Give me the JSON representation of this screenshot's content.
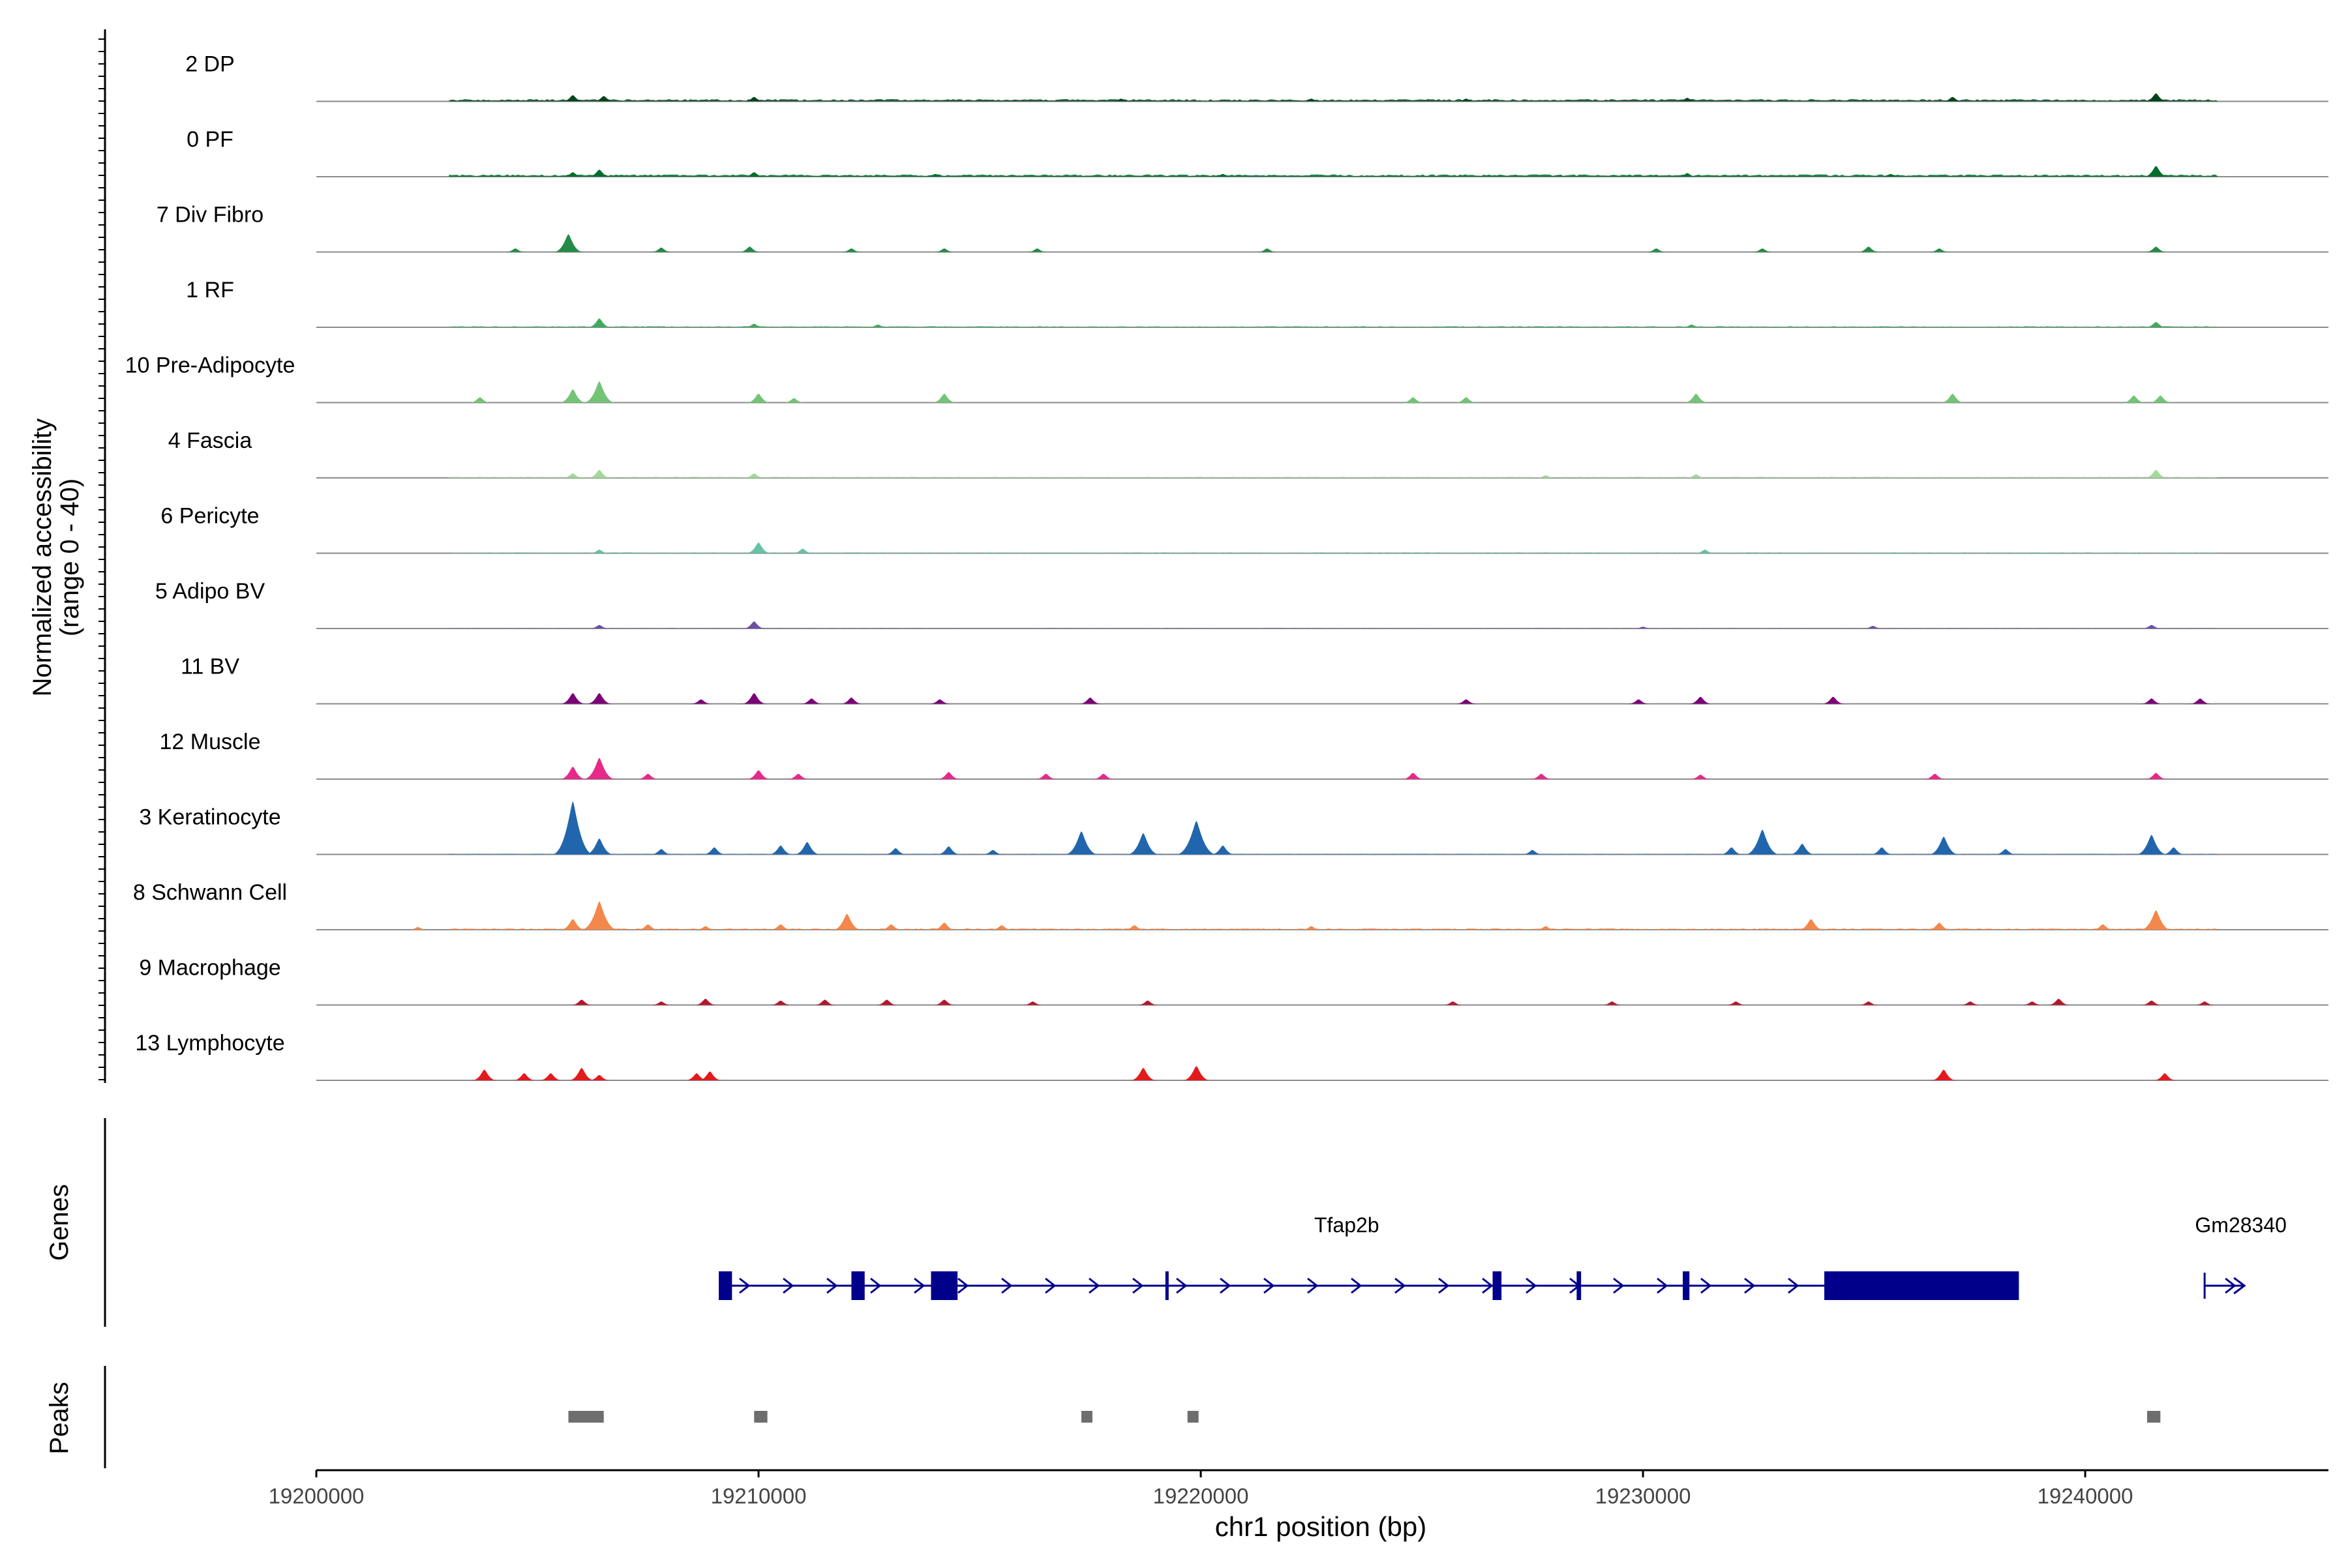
{
  "chart_data": {
    "type": "area",
    "title": "",
    "chromosome": "chr1",
    "xlabel": "chr1 position (bp)",
    "ylabel_line1": "Normalized accessibility",
    "ylabel_line2": "(range 0 - 40)",
    "xlim": [
      19200000,
      19245500
    ],
    "ylim": [
      0,
      40
    ],
    "x_ticks": [
      19200000,
      19210000,
      19220000,
      19230000,
      19240000
    ],
    "x_tick_labels": [
      "19200000",
      "19210000",
      "19220000",
      "19230000",
      "19240000"
    ],
    "series": [
      {
        "name": "2 DP",
        "color": "#00441B",
        "background": 1.0,
        "peaks": [
          [
            19205800,
            3.5
          ],
          [
            19206500,
            3.0
          ],
          [
            19209900,
            2.5
          ],
          [
            19218200,
            1.5
          ],
          [
            19222500,
            1.5
          ],
          [
            19226000,
            1.5
          ],
          [
            19231000,
            2.0
          ],
          [
            19237000,
            2.5
          ],
          [
            19241600,
            4.5
          ]
        ]
      },
      {
        "name": "0 PF",
        "color": "#006D2C",
        "background": 1.0,
        "peaks": [
          [
            19205800,
            2.5
          ],
          [
            19206400,
            4.0
          ],
          [
            19209900,
            2.5
          ],
          [
            19214000,
            1.5
          ],
          [
            19220500,
            1.5
          ],
          [
            19231000,
            2.0
          ],
          [
            19235600,
            1.5
          ],
          [
            19241600,
            6.0
          ]
        ]
      },
      {
        "name": "7 Div Fibro",
        "color": "#238B45",
        "background": 0.0,
        "peaks": [
          [
            19204500,
            2.0
          ],
          [
            19205700,
            10.0
          ],
          [
            19207800,
            2.5
          ],
          [
            19209800,
            3.0
          ],
          [
            19212100,
            2.0
          ],
          [
            19214200,
            2.0
          ],
          [
            19216300,
            2.0
          ],
          [
            19221500,
            2.0
          ],
          [
            19230300,
            2.0
          ],
          [
            19232700,
            2.0
          ],
          [
            19235100,
            3.0
          ],
          [
            19236700,
            2.0
          ],
          [
            19241600,
            3.0
          ]
        ]
      },
      {
        "name": "1 RF",
        "color": "#41AB5D",
        "background": 0.5,
        "peaks": [
          [
            19206400,
            5.0
          ],
          [
            19209900,
            2.0
          ],
          [
            19212700,
            1.5
          ],
          [
            19231100,
            1.5
          ],
          [
            19241600,
            3.0
          ]
        ]
      },
      {
        "name": "10 Pre-Adipocyte",
        "color": "#74C476",
        "background": 0.0,
        "peaks": [
          [
            19203700,
            3.0
          ],
          [
            19205800,
            7.5
          ],
          [
            19206400,
            12.0
          ],
          [
            19210000,
            5.0
          ],
          [
            19210800,
            2.5
          ],
          [
            19214200,
            5.0
          ],
          [
            19224800,
            3.0
          ],
          [
            19226000,
            3.0
          ],
          [
            19231200,
            5.0
          ],
          [
            19237000,
            5.0
          ],
          [
            19241100,
            4.0
          ],
          [
            19241700,
            4.0
          ]
        ]
      },
      {
        "name": "4 Fascia",
        "color": "#A1D99B",
        "background": 0.5,
        "peaks": [
          [
            19205800,
            2.5
          ],
          [
            19206400,
            4.5
          ],
          [
            19209900,
            2.5
          ],
          [
            19227800,
            1.5
          ],
          [
            19231200,
            2.0
          ],
          [
            19241600,
            4.5
          ]
        ]
      },
      {
        "name": "6 Pericyte",
        "color": "#66C2A4",
        "background": 0.4,
        "peaks": [
          [
            19206400,
            2.0
          ],
          [
            19210000,
            6.0
          ],
          [
            19211000,
            2.5
          ],
          [
            19231400,
            2.0
          ]
        ]
      },
      {
        "name": "5 Adipo BV",
        "color": "#6A51A3",
        "background": 0.2,
        "peaks": [
          [
            19206400,
            2.0
          ],
          [
            19209900,
            4.0
          ],
          [
            19230000,
            1.0
          ],
          [
            19235200,
            1.5
          ],
          [
            19241500,
            2.0
          ]
        ]
      },
      {
        "name": "11 BV",
        "color": "#7A0177",
        "background": 0.0,
        "peaks": [
          [
            19205800,
            6.0
          ],
          [
            19206400,
            6.0
          ],
          [
            19208700,
            2.5
          ],
          [
            19209900,
            6.0
          ],
          [
            19211200,
            3.0
          ],
          [
            19212100,
            3.5
          ],
          [
            19214100,
            2.5
          ],
          [
            19217500,
            3.5
          ],
          [
            19226000,
            2.5
          ],
          [
            19229900,
            2.5
          ],
          [
            19231300,
            4.0
          ],
          [
            19234300,
            4.0
          ],
          [
            19241500,
            3.0
          ],
          [
            19242600,
            3.0
          ]
        ]
      },
      {
        "name": "12 Muscle",
        "color": "#E7298A",
        "background": 0.0,
        "peaks": [
          [
            19205800,
            7.0
          ],
          [
            19206400,
            12.0
          ],
          [
            19207500,
            3.0
          ],
          [
            19210000,
            5.0
          ],
          [
            19210900,
            3.0
          ],
          [
            19214300,
            4.0
          ],
          [
            19216500,
            3.0
          ],
          [
            19217800,
            3.0
          ],
          [
            19224800,
            3.5
          ],
          [
            19227700,
            3.0
          ],
          [
            19231300,
            2.5
          ],
          [
            19236600,
            3.0
          ],
          [
            19241600,
            3.5
          ]
        ]
      },
      {
        "name": "3 Keratinocyte",
        "color": "#2166AC",
        "background": 0.3,
        "peaks": [
          [
            19205800,
            30.0
          ],
          [
            19206400,
            9.0
          ],
          [
            19207800,
            3.0
          ],
          [
            19209000,
            4.0
          ],
          [
            19210500,
            5.0
          ],
          [
            19211100,
            7.0
          ],
          [
            19213100,
            3.5
          ],
          [
            19214300,
            4.5
          ],
          [
            19215300,
            2.5
          ],
          [
            19217300,
            13.0
          ],
          [
            19218700,
            12.0
          ],
          [
            19219900,
            19.0
          ],
          [
            19220500,
            5.0
          ],
          [
            19227500,
            2.5
          ],
          [
            19232000,
            4.0
          ],
          [
            19232700,
            14.0
          ],
          [
            19233600,
            6.0
          ],
          [
            19235400,
            4.0
          ],
          [
            19236800,
            10.0
          ],
          [
            19238200,
            3.0
          ],
          [
            19241500,
            11.0
          ],
          [
            19242000,
            4.0
          ]
        ]
      },
      {
        "name": "8 Schwann Cell",
        "color": "#F4874B",
        "background": 0.6,
        "peaks": [
          [
            19202300,
            1.5
          ],
          [
            19205800,
            6.0
          ],
          [
            19206400,
            16.0
          ],
          [
            19207500,
            3.0
          ],
          [
            19208800,
            2.0
          ],
          [
            19210500,
            3.0
          ],
          [
            19212000,
            9.0
          ],
          [
            19213000,
            3.0
          ],
          [
            19214200,
            4.0
          ],
          [
            19215500,
            2.5
          ],
          [
            19218500,
            2.5
          ],
          [
            19222500,
            2.0
          ],
          [
            19227800,
            2.0
          ],
          [
            19233800,
            6.0
          ],
          [
            19236700,
            4.0
          ],
          [
            19240400,
            3.0
          ],
          [
            19241600,
            11.0
          ]
        ]
      },
      {
        "name": "9 Macrophage",
        "color": "#B2182B",
        "background": 0.0,
        "peaks": [
          [
            19206000,
            3.0
          ],
          [
            19207800,
            2.0
          ],
          [
            19208800,
            3.5
          ],
          [
            19210500,
            2.5
          ],
          [
            19211500,
            3.0
          ],
          [
            19212900,
            3.0
          ],
          [
            19214200,
            3.0
          ],
          [
            19216200,
            2.0
          ],
          [
            19218800,
            2.5
          ],
          [
            19225700,
            2.0
          ],
          [
            19229300,
            2.0
          ],
          [
            19232100,
            2.0
          ],
          [
            19235100,
            2.0
          ],
          [
            19237400,
            2.0
          ],
          [
            19238800,
            2.0
          ],
          [
            19239400,
            3.5
          ],
          [
            19241500,
            2.5
          ],
          [
            19242700,
            2.0
          ]
        ]
      },
      {
        "name": "13 Lymphocyte",
        "color": "#E31A1C",
        "background": 0.0,
        "peaks": [
          [
            19203800,
            6.0
          ],
          [
            19204700,
            4.0
          ],
          [
            19205300,
            4.0
          ],
          [
            19206000,
            7.0
          ],
          [
            19206400,
            3.0
          ],
          [
            19208600,
            4.0
          ],
          [
            19208900,
            5.0
          ],
          [
            19218700,
            7.0
          ],
          [
            19219900,
            8.0
          ],
          [
            19236800,
            6.0
          ],
          [
            19241800,
            4.0
          ]
        ]
      }
    ],
    "genes_label": "Genes",
    "genes": [
      {
        "name": "Tfap2b",
        "strand": "+",
        "start": 19209100,
        "end": 19238500,
        "exons": [
          [
            19209100,
            19209400
          ],
          [
            19212100,
            19212400
          ],
          [
            19213900,
            19214500
          ],
          [
            19219200,
            19219250
          ],
          [
            19226600,
            19226800
          ],
          [
            19228500,
            19228600
          ],
          [
            19230900,
            19231050
          ],
          [
            19234100,
            19238500
          ]
        ]
      },
      {
        "name": "Gm28340",
        "strand": "+",
        "start": 19242700,
        "end": 19243600,
        "exons": []
      }
    ],
    "peaks_label": "Peaks",
    "peak_regions": [
      [
        19205700,
        19206500
      ],
      [
        19209900,
        19210200
      ],
      [
        19217300,
        19217550
      ],
      [
        19219700,
        19219950
      ],
      [
        19241400,
        19241700
      ]
    ]
  }
}
